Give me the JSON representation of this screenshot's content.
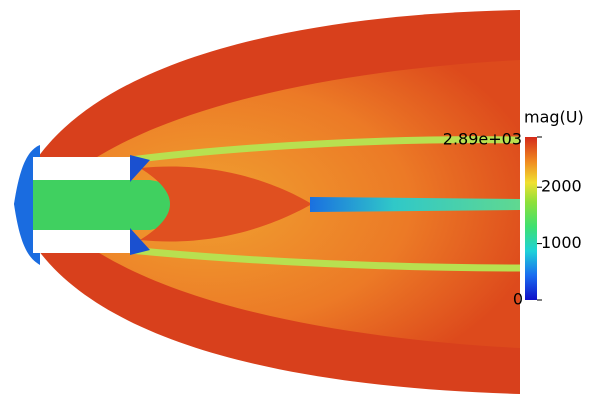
{
  "colorbar": {
    "title": "mag(U)",
    "range": [
      0,
      2890
    ],
    "ticks": [
      0,
      1000,
      2000,
      {
        "value": 2890,
        "label": "2.89e+03"
      }
    ]
  }
}
